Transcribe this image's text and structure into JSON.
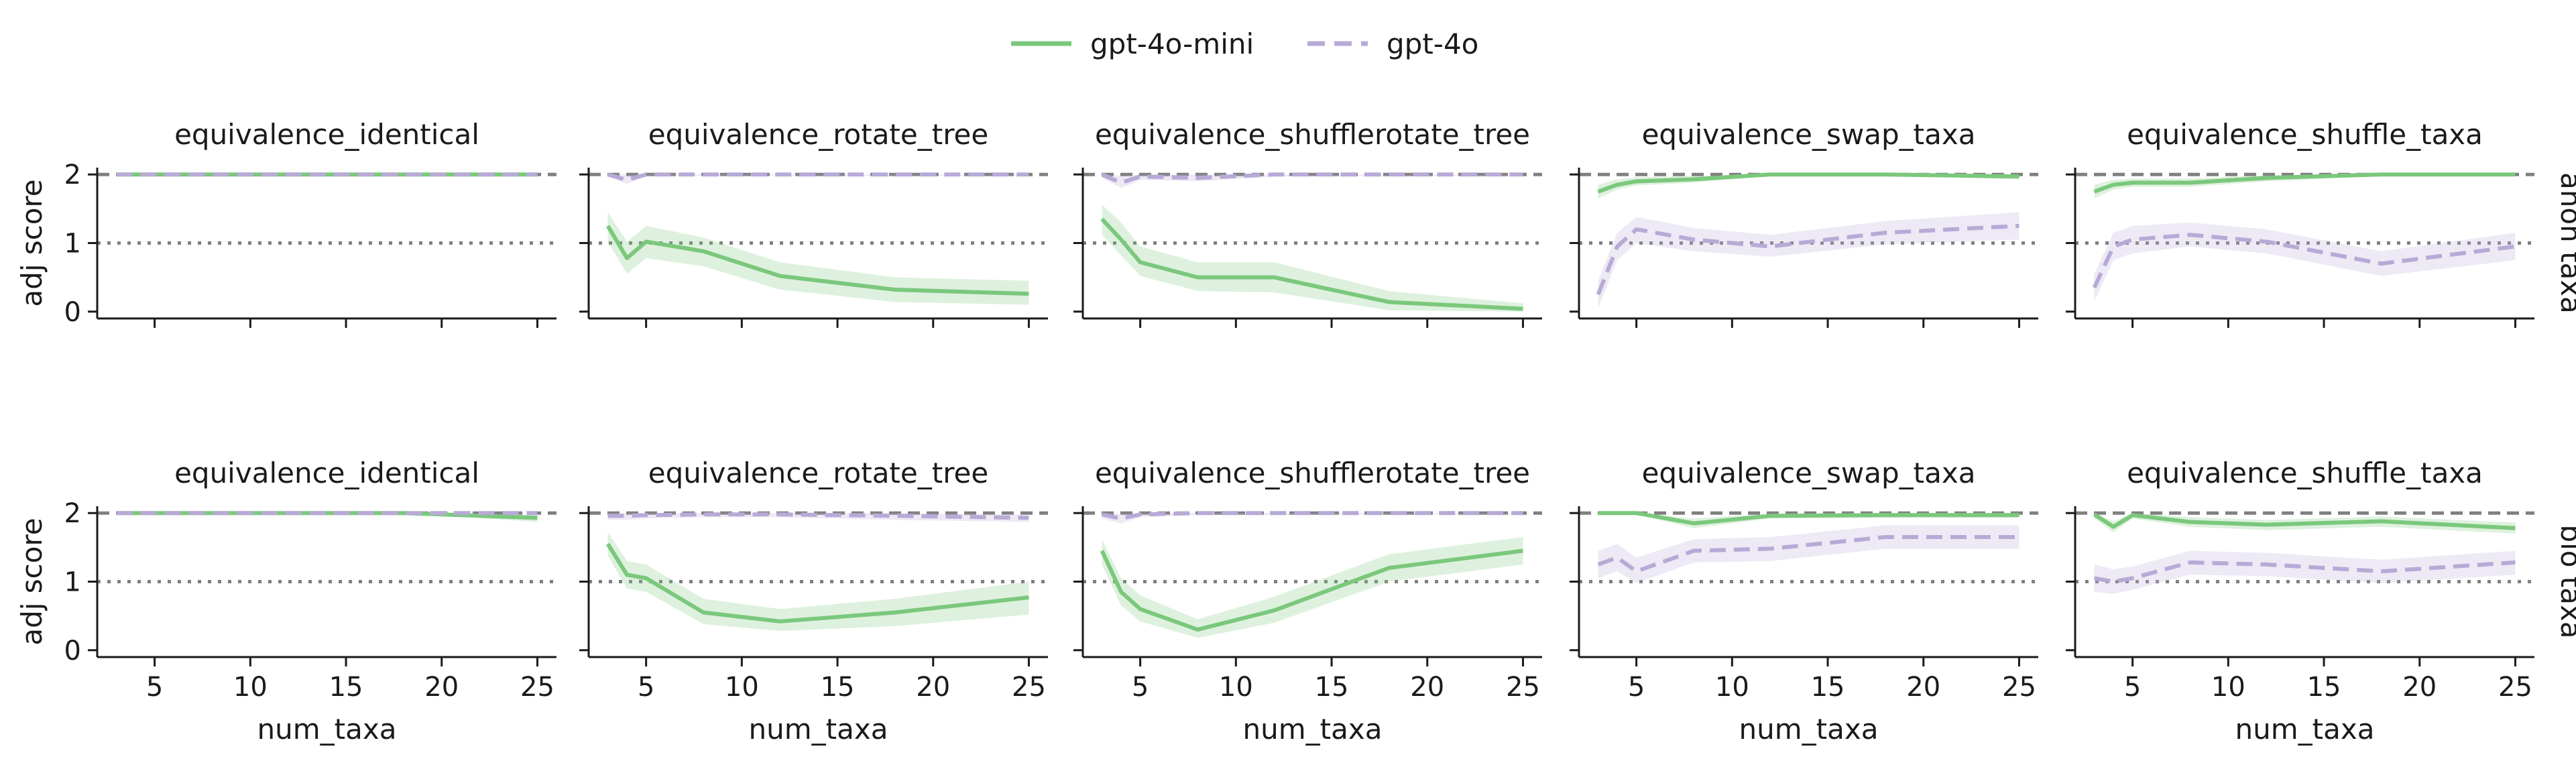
{
  "legend": {
    "placement": "top-center",
    "items": [
      {
        "name": "gpt-4o-mini",
        "color": "#7bc87c",
        "style": "solid"
      },
      {
        "name": "gpt-4o",
        "color": "#b8aad6",
        "style": "dashed"
      }
    ]
  },
  "row_labels": [
    "anon taxa",
    "bio taxa"
  ],
  "column_titles": [
    "equivalence_identical",
    "equivalence_rotate_tree",
    "equivalence_shufflerotate_tree",
    "equivalence_swap_taxa",
    "equivalence_shuffle_taxa"
  ],
  "chart_data": {
    "type": "line",
    "layout": "facet grid 2 rows x 5 columns",
    "xlabel": "num_taxa",
    "ylabel": "adj score",
    "xlim": [
      2,
      26
    ],
    "ylim": [
      -0.1,
      2.1
    ],
    "xticks": [
      5,
      10,
      15,
      20,
      25
    ],
    "yticks": [
      0,
      1,
      2
    ],
    "grid": false,
    "reference_lines": [
      {
        "y": 2,
        "style": "dashed",
        "color": "#808080"
      },
      {
        "y": 1,
        "style": "dotted",
        "color": "#808080"
      }
    ],
    "x": [
      3,
      4,
      5,
      8,
      12,
      18,
      25
    ],
    "panels": [
      {
        "row": "anon taxa",
        "title": "equivalence_identical",
        "series": [
          {
            "name": "gpt-4o-mini",
            "values": [
              2,
              2,
              2,
              2,
              2,
              2,
              2
            ],
            "ci_low": [
              2,
              2,
              2,
              2,
              2,
              2,
              2
            ],
            "ci_high": [
              2,
              2,
              2,
              2,
              2,
              2,
              2
            ]
          },
          {
            "name": "gpt-4o",
            "values": [
              2,
              2,
              2,
              2,
              2,
              2,
              2
            ],
            "ci_low": [
              2,
              2,
              2,
              2,
              2,
              2,
              2
            ],
            "ci_high": [
              2,
              2,
              2,
              2,
              2,
              2,
              2
            ]
          }
        ]
      },
      {
        "row": "anon taxa",
        "title": "equivalence_rotate_tree",
        "series": [
          {
            "name": "gpt-4o-mini",
            "values": [
              1.25,
              0.78,
              1.02,
              0.88,
              0.52,
              0.32,
              0.26
            ],
            "ci_low": [
              1.02,
              0.55,
              0.78,
              0.66,
              0.32,
              0.14,
              0.1
            ],
            "ci_high": [
              1.45,
              1.02,
              1.25,
              1.08,
              0.72,
              0.5,
              0.45
            ]
          },
          {
            "name": "gpt-4o",
            "values": [
              2.0,
              1.92,
              2.0,
              2.0,
              2.0,
              2.0,
              2.0
            ],
            "ci_low": [
              1.97,
              1.86,
              1.98,
              1.98,
              1.98,
              1.98,
              1.98
            ],
            "ci_high": [
              2.0,
              2.0,
              2.0,
              2.0,
              2.0,
              2.0,
              2.0
            ]
          }
        ]
      },
      {
        "row": "anon taxa",
        "title": "equivalence_shufflerotate_tree",
        "series": [
          {
            "name": "gpt-4o-mini",
            "values": [
              1.35,
              1.05,
              0.72,
              0.5,
              0.5,
              0.14,
              0.04
            ],
            "ci_low": [
              1.12,
              0.82,
              0.52,
              0.3,
              0.28,
              0.02,
              0.0
            ],
            "ci_high": [
              1.56,
              1.3,
              0.95,
              0.72,
              0.72,
              0.3,
              0.12
            ]
          },
          {
            "name": "gpt-4o",
            "values": [
              2.0,
              1.88,
              1.97,
              1.95,
              2.0,
              2.0,
              2.0
            ],
            "ci_low": [
              1.95,
              1.8,
              1.92,
              1.9,
              1.97,
              1.98,
              1.98
            ],
            "ci_high": [
              2.0,
              1.98,
              2.0,
              2.0,
              2.0,
              2.0,
              2.0
            ]
          }
        ]
      },
      {
        "row": "anon taxa",
        "title": "equivalence_swap_taxa",
        "series": [
          {
            "name": "gpt-4o-mini",
            "values": [
              1.75,
              1.85,
              1.9,
              1.93,
              2.0,
              2.0,
              1.97
            ],
            "ci_low": [
              1.65,
              1.78,
              1.84,
              1.88,
              1.98,
              1.98,
              1.93
            ],
            "ci_high": [
              1.85,
              1.93,
              1.96,
              1.98,
              2.0,
              2.0,
              2.0
            ]
          },
          {
            "name": "gpt-4o",
            "values": [
              0.25,
              0.95,
              1.2,
              1.05,
              0.95,
              1.15,
              1.25
            ],
            "ci_low": [
              0.05,
              0.75,
              1.0,
              0.88,
              0.8,
              0.98,
              1.05
            ],
            "ci_high": [
              0.45,
              1.15,
              1.38,
              1.22,
              1.12,
              1.32,
              1.45
            ]
          }
        ]
      },
      {
        "row": "anon taxa",
        "title": "equivalence_shuffle_taxa",
        "series": [
          {
            "name": "gpt-4o-mini",
            "values": [
              1.75,
              1.85,
              1.88,
              1.88,
              1.95,
              2.0,
              2.0
            ],
            "ci_low": [
              1.65,
              1.78,
              1.82,
              1.82,
              1.9,
              1.98,
              1.98
            ],
            "ci_high": [
              1.85,
              1.92,
              1.94,
              1.94,
              1.99,
              2.0,
              2.0
            ]
          },
          {
            "name": "gpt-4o",
            "values": [
              0.35,
              0.95,
              1.05,
              1.12,
              1.02,
              0.7,
              0.95
            ],
            "ci_low": [
              0.15,
              0.75,
              0.85,
              0.95,
              0.85,
              0.52,
              0.75
            ],
            "ci_high": [
              0.55,
              1.15,
              1.25,
              1.3,
              1.2,
              0.88,
              1.15
            ]
          }
        ]
      },
      {
        "row": "bio taxa",
        "title": "equivalence_identical",
        "series": [
          {
            "name": "gpt-4o-mini",
            "values": [
              2,
              2,
              2,
              2,
              2,
              2,
              1.93
            ],
            "ci_low": [
              2,
              2,
              2,
              2,
              2,
              2,
              1.87
            ],
            "ci_high": [
              2,
              2,
              2,
              2,
              2,
              2,
              1.98
            ]
          },
          {
            "name": "gpt-4o",
            "values": [
              2,
              2,
              2,
              2,
              2,
              2,
              2
            ],
            "ci_low": [
              2,
              2,
              2,
              2,
              2,
              2,
              2
            ],
            "ci_high": [
              2,
              2,
              2,
              2,
              2,
              2,
              2
            ]
          }
        ]
      },
      {
        "row": "bio taxa",
        "title": "equivalence_rotate_tree",
        "series": [
          {
            "name": "gpt-4o-mini",
            "values": [
              1.55,
              1.1,
              1.05,
              0.55,
              0.42,
              0.55,
              0.77
            ],
            "ci_low": [
              1.38,
              0.9,
              0.85,
              0.38,
              0.28,
              0.35,
              0.52
            ],
            "ci_high": [
              1.72,
              1.3,
              1.25,
              0.75,
              0.6,
              0.75,
              1.0
            ]
          },
          {
            "name": "gpt-4o",
            "values": [
              1.96,
              1.96,
              1.97,
              1.98,
              1.98,
              1.96,
              1.93
            ],
            "ci_low": [
              1.9,
              1.9,
              1.92,
              1.94,
              1.94,
              1.9,
              1.87
            ],
            "ci_high": [
              2.0,
              2.0,
              2.0,
              2.0,
              2.0,
              2.0,
              1.98
            ]
          }
        ]
      },
      {
        "row": "bio taxa",
        "title": "equivalence_shufflerotate_tree",
        "series": [
          {
            "name": "gpt-4o-mini",
            "values": [
              1.45,
              0.85,
              0.6,
              0.3,
              0.58,
              1.2,
              1.45
            ],
            "ci_low": [
              1.25,
              0.65,
              0.42,
              0.18,
              0.4,
              1.0,
              1.25
            ],
            "ci_high": [
              1.62,
              1.05,
              0.8,
              0.45,
              0.78,
              1.4,
              1.65
            ]
          },
          {
            "name": "gpt-4o",
            "values": [
              1.98,
              1.92,
              1.98,
              2.0,
              2.0,
              2.0,
              2.0
            ],
            "ci_low": [
              1.92,
              1.85,
              1.94,
              1.97,
              1.97,
              1.98,
              1.98
            ],
            "ci_high": [
              2.0,
              1.99,
              2.0,
              2.0,
              2.0,
              2.0,
              2.0
            ]
          }
        ]
      },
      {
        "row": "bio taxa",
        "title": "equivalence_swap_taxa",
        "series": [
          {
            "name": "gpt-4o-mini",
            "values": [
              2.0,
              2.0,
              2.0,
              1.85,
              1.96,
              1.97,
              1.97
            ],
            "ci_low": [
              1.98,
              1.98,
              1.98,
              1.78,
              1.92,
              1.93,
              1.93
            ],
            "ci_high": [
              2.0,
              2.0,
              2.0,
              1.92,
              1.99,
              2.0,
              2.0
            ]
          },
          {
            "name": "gpt-4o",
            "values": [
              1.25,
              1.35,
              1.15,
              1.45,
              1.48,
              1.65,
              1.65
            ],
            "ci_low": [
              1.05,
              1.15,
              0.98,
              1.28,
              1.3,
              1.48,
              1.48
            ],
            "ci_high": [
              1.45,
              1.55,
              1.35,
              1.62,
              1.65,
              1.82,
              1.82
            ]
          }
        ]
      },
      {
        "row": "bio taxa",
        "title": "equivalence_shuffle_taxa",
        "series": [
          {
            "name": "gpt-4o-mini",
            "values": [
              1.98,
              1.8,
              1.97,
              1.87,
              1.83,
              1.88,
              1.78
            ],
            "ci_low": [
              1.92,
              1.72,
              1.92,
              1.8,
              1.75,
              1.8,
              1.7
            ],
            "ci_high": [
              2.0,
              1.88,
              2.0,
              1.94,
              1.9,
              1.95,
              1.86
            ]
          },
          {
            "name": "gpt-4o",
            "values": [
              1.05,
              1.0,
              1.05,
              1.28,
              1.25,
              1.15,
              1.28
            ],
            "ci_low": [
              0.85,
              0.82,
              0.88,
              1.1,
              1.08,
              0.98,
              1.1
            ],
            "ci_high": [
              1.25,
              1.18,
              1.22,
              1.45,
              1.42,
              1.32,
              1.45
            ]
          }
        ]
      }
    ]
  }
}
